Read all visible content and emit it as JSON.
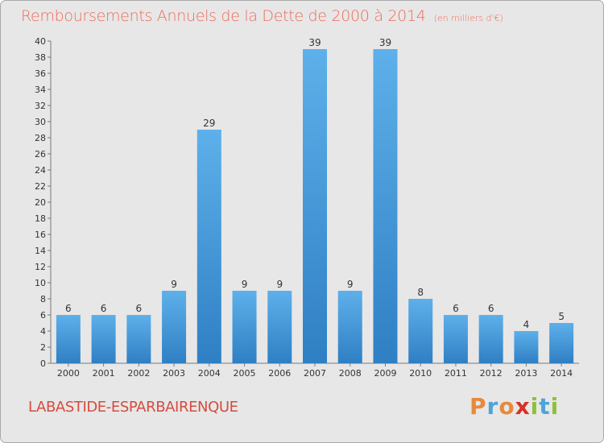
{
  "title": "Remboursements Annuels de la Dette de 2000 à 2014",
  "subtitle": "(en milliers d'€)",
  "place": "LABASTIDE-ESPARBAIRENQUE",
  "brand": {
    "letters": [
      "P",
      "r",
      "o",
      "x",
      "i",
      "t",
      "i"
    ],
    "colors": [
      "#e8893b",
      "#4fa3d8",
      "#e8893b",
      "#d6322a",
      "#8fbf3a",
      "#4fa3d8",
      "#8fbf3a"
    ]
  },
  "chart_data": {
    "type": "bar",
    "categories": [
      "2000",
      "2001",
      "2002",
      "2003",
      "2004",
      "2005",
      "2006",
      "2007",
      "2008",
      "2009",
      "2010",
      "2011",
      "2012",
      "2013",
      "2014"
    ],
    "values": [
      6,
      6,
      6,
      9,
      29,
      9,
      9,
      39,
      9,
      39,
      8,
      6,
      6,
      4,
      5
    ],
    "title": "Remboursements Annuels de la Dette de 2000 à 2014",
    "subtitle": "(en milliers d'€)",
    "xlabel": "",
    "ylabel": "",
    "ylim": [
      0,
      40
    ],
    "yticks": [
      0,
      2,
      4,
      6,
      8,
      10,
      12,
      14,
      16,
      18,
      20,
      22,
      24,
      26,
      28,
      30,
      32,
      34,
      36,
      38,
      40
    ],
    "grid": false,
    "bar_color": "#3d8fd6",
    "bar_color_light": "#5aade8"
  }
}
